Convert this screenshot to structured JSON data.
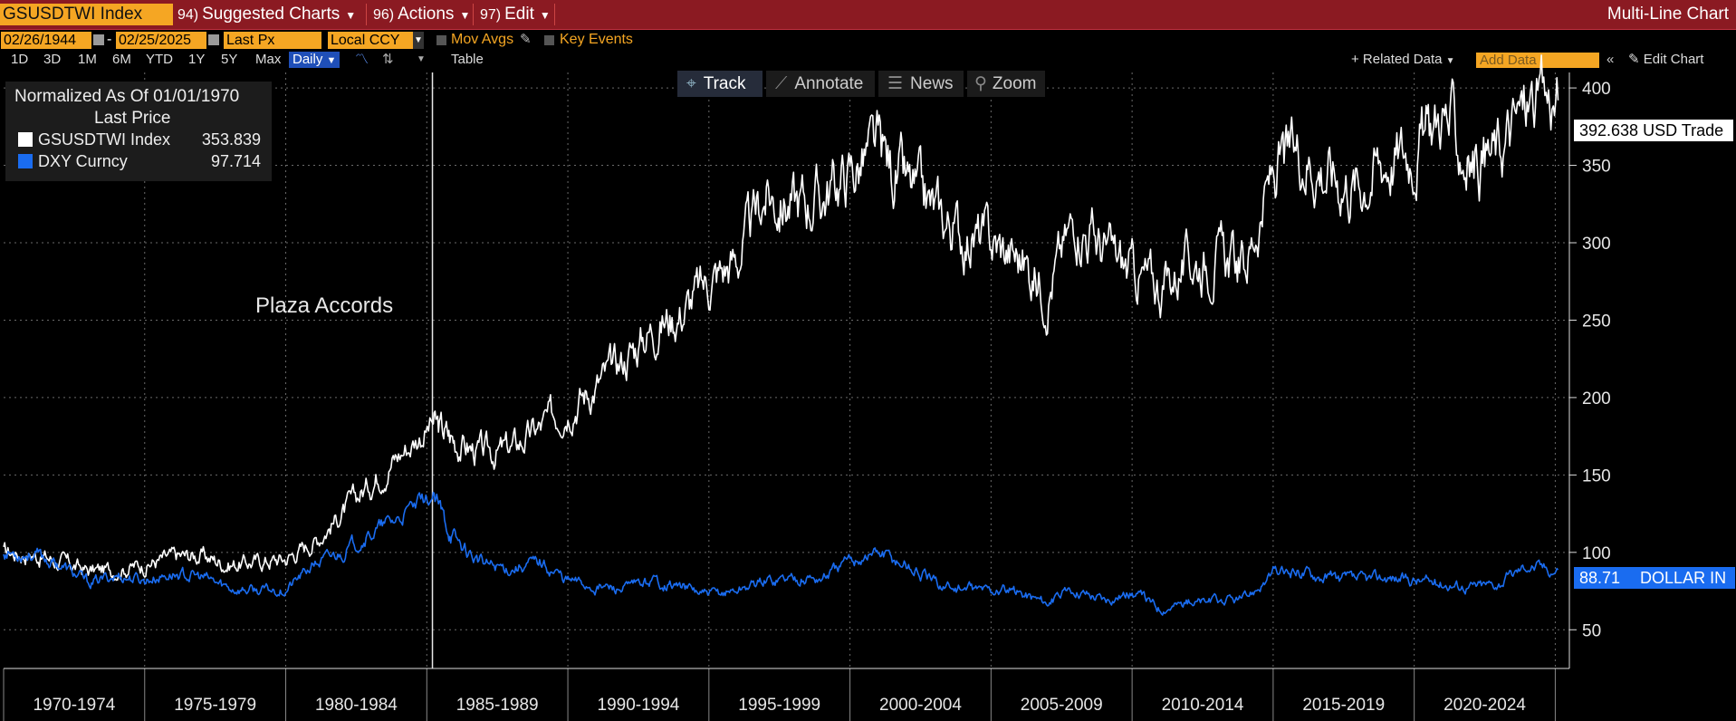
{
  "header": {
    "ticker": "GSUSDTWI Index",
    "menus": [
      {
        "num": "94)",
        "label": "Suggested Charts"
      },
      {
        "num": "96)",
        "label": "Actions"
      },
      {
        "num": "97)",
        "label": "Edit"
      }
    ],
    "chart_kind": "Multi-Line Chart"
  },
  "controls": {
    "start_date": "02/26/1944",
    "end_date": "02/25/2025",
    "field": "Last Px",
    "currency": "Local CCY",
    "mov_avgs": "Mov Avgs",
    "key_events": "Key Events"
  },
  "ranges": [
    "1D",
    "3D",
    "1M",
    "6M",
    "YTD",
    "1Y",
    "5Y",
    "Max"
  ],
  "frequency": "Daily",
  "table_label": "Table",
  "related_data": "+ Related Data",
  "add_data_placeholder": "Add Data",
  "edit_chart": "Edit Chart",
  "tools": [
    "Track",
    "Annotate",
    "News",
    "Zoom"
  ],
  "legend": {
    "title": "Normalized As Of 01/01/1970",
    "subtitle": "Last Price",
    "entries": [
      {
        "name": "GSUSDTWI Index",
        "value": "353.839",
        "color": "#ffffff"
      },
      {
        "name": "DXY Curncy",
        "value": "97.714",
        "color": "#1a6cf0"
      }
    ]
  },
  "annotation": "Plaza Accords",
  "last_labels": {
    "white": "392.638 USD Trade",
    "blue_value": "88.71",
    "blue_name": "DOLLAR IN"
  },
  "chart_data": {
    "type": "line",
    "x_tick_labels": [
      "1970-1974",
      "1975-1979",
      "1980-1984",
      "1985-1989",
      "1990-1994",
      "1995-1999",
      "2000-2004",
      "2005-2009",
      "2010-2014",
      "2015-2019",
      "2020-2024"
    ],
    "y_ticks": [
      50,
      100,
      150,
      200,
      250,
      300,
      350,
      400
    ],
    "ylim": [
      25,
      410
    ],
    "xlim": [
      1970,
      2025.5
    ],
    "grid": true,
    "legend_position": "top-left",
    "event_line": {
      "x": 1985.2,
      "label": "Plaza Accords"
    },
    "series": [
      {
        "name": "GSUSDTWI Index",
        "color": "#ffffff",
        "x": [
          1970,
          1971,
          1972,
          1973,
          1974,
          1975,
          1976,
          1977,
          1978,
          1979,
          1980,
          1981,
          1982,
          1983,
          1984,
          1985.2,
          1986,
          1987,
          1988,
          1989,
          1990,
          1991,
          1992,
          1993,
          1994,
          1995,
          1996,
          1997,
          1998,
          1999,
          2000,
          2001,
          2002,
          2003,
          2004,
          2005,
          2006,
          2007,
          2008,
          2009,
          2010,
          2011,
          2012,
          2013,
          2014,
          2015,
          2016,
          2017,
          2018,
          2019,
          2020,
          2021,
          2022,
          2023,
          2024,
          2025.1
        ],
        "y": [
          100,
          99,
          94,
          88,
          89,
          92,
          97,
          98,
          92,
          94,
          96,
          107,
          125,
          145,
          163,
          183,
          172,
          163,
          167,
          180,
          195,
          207,
          225,
          245,
          255,
          275,
          290,
          330,
          325,
          330,
          345,
          360,
          335,
          320,
          305,
          300,
          290,
          270,
          318,
          295,
          280,
          272,
          287,
          290,
          285,
          345,
          360,
          345,
          338,
          355,
          360,
          385,
          350,
          360,
          390,
          392
        ]
      },
      {
        "name": "DXY Curncy",
        "color": "#1a6cf0",
        "x": [
          1970,
          1971,
          1972,
          1973,
          1974,
          1975,
          1976,
          1977,
          1978,
          1979,
          1980,
          1981,
          1982,
          1983,
          1984,
          1985.2,
          1986,
          1987,
          1988,
          1989,
          1990,
          1991,
          1992,
          1993,
          1994,
          1995,
          1996,
          1997,
          1998,
          1999,
          2000,
          2001,
          2002,
          2003,
          2004,
          2005,
          2006,
          2007,
          2008,
          2009,
          2010,
          2011,
          2012,
          2013,
          2014,
          2015,
          2016,
          2017,
          2018,
          2019,
          2020,
          2021,
          2022,
          2023,
          2024,
          2025.1
        ],
        "y": [
          100,
          99,
          92,
          80,
          85,
          82,
          86,
          84,
          77,
          75,
          76,
          92,
          100,
          112,
          122,
          136,
          108,
          92,
          90,
          94,
          82,
          78,
          76,
          82,
          78,
          72,
          76,
          82,
          84,
          83,
          95,
          100,
          92,
          80,
          76,
          76,
          74,
          68,
          76,
          70,
          74,
          64,
          68,
          68,
          70,
          86,
          88,
          84,
          82,
          84,
          82,
          80,
          78,
          80,
          92,
          88.71
        ]
      }
    ]
  }
}
